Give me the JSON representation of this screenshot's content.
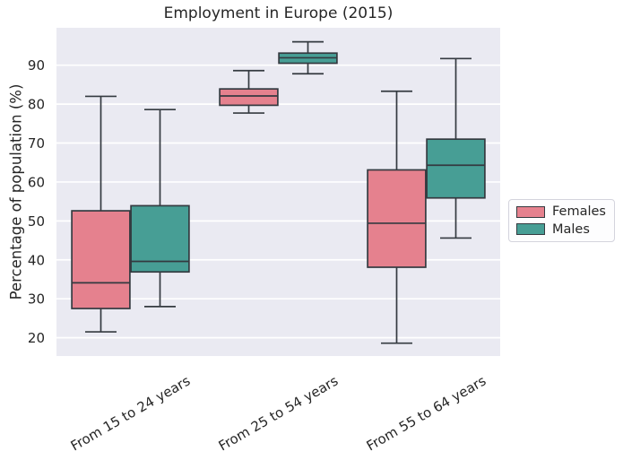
{
  "chart_data": {
    "type": "box",
    "title": "Employment in Europe (2015)",
    "xlabel": "",
    "ylabel": "Percentage of population (%)",
    "categories": [
      "From 15 to 24 years",
      "From 25 to 54 years",
      "From 55 to 64 years"
    ],
    "series": [
      {
        "name": "Females",
        "color": "#e5818e",
        "boxes": [
          {
            "whisker_low": 21.5,
            "q1": 27.5,
            "median": 34.1,
            "q3": 52.6,
            "whisker_high": 82.0
          },
          {
            "whisker_low": 77.7,
            "q1": 79.7,
            "median": 82.1,
            "q3": 83.9,
            "whisker_high": 88.6
          },
          {
            "whisker_low": 18.6,
            "q1": 38.1,
            "median": 49.4,
            "q3": 63.1,
            "whisker_high": 83.3
          }
        ]
      },
      {
        "name": "Males",
        "color": "#479e95",
        "boxes": [
          {
            "whisker_low": 28.0,
            "q1": 36.9,
            "median": 39.6,
            "q3": 53.9,
            "whisker_high": 78.6
          },
          {
            "whisker_low": 87.8,
            "q1": 90.5,
            "median": 91.9,
            "q3": 93.1,
            "whisker_high": 96.0
          },
          {
            "whisker_low": 45.6,
            "q1": 55.9,
            "median": 64.3,
            "q3": 71.0,
            "whisker_high": 91.7
          }
        ]
      }
    ],
    "yticks": [
      20,
      30,
      40,
      50,
      60,
      70,
      80,
      90
    ],
    "ylim": [
      15.3,
      99.6
    ],
    "grid": true,
    "legend_position": "outside-right",
    "x_tick_rotation_deg": 30,
    "colors": {
      "plot_bg": "#eaeaf2",
      "grid": "#ffffff",
      "box_edge": "#343a40",
      "text": "#262626"
    }
  }
}
